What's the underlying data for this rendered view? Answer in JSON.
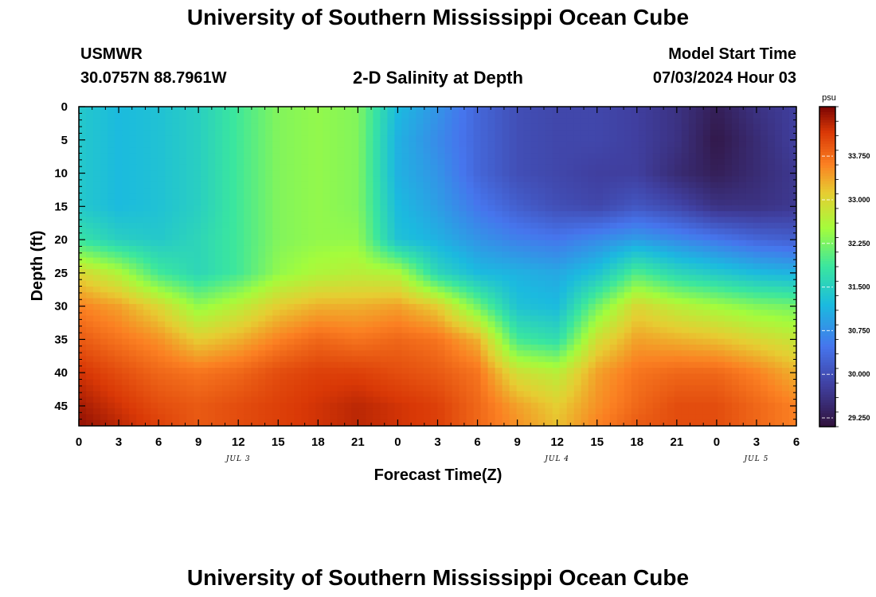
{
  "page": {
    "title_top": "University of Southern Mississippi Ocean Cube",
    "title_bottom": "University of Southern Mississippi Ocean Cube",
    "station_id": "USMWR",
    "station_coords": "30.0757N  88.7961W",
    "plot_title": "2-D Salinity at Depth",
    "model_start_label": "Model Start Time",
    "model_start_value": "07/03/2024 Hour 03"
  },
  "chart_data": {
    "type": "heatmap",
    "title": "2-D Salinity at Depth",
    "xlabel": "Forecast Time(Z)",
    "ylabel": "Depth (ft)",
    "x_range_hours": [
      0,
      54
    ],
    "x_tick_hours": [
      0,
      3,
      6,
      9,
      12,
      15,
      18,
      21,
      24,
      27,
      30,
      33,
      36,
      39,
      42,
      45,
      48,
      51,
      54
    ],
    "x_tick_labels": [
      "0",
      "3",
      "6",
      "9",
      "12",
      "15",
      "18",
      "21",
      "0",
      "3",
      "6",
      "9",
      "12",
      "15",
      "18",
      "21",
      "0",
      "3",
      "6"
    ],
    "date_labels": [
      {
        "text": "JUL 3",
        "hour": 12
      },
      {
        "text": "JUL 4",
        "hour": 36
      },
      {
        "text": "JUL 5",
        "hour": 51
      }
    ],
    "y_range_ft": [
      0,
      48
    ],
    "y_ticks": [
      0,
      5,
      10,
      15,
      20,
      25,
      30,
      35,
      40,
      45
    ],
    "y_tick_labels": [
      "0",
      "5",
      "10",
      "15",
      "20",
      "25",
      "30",
      "35",
      "40",
      "45"
    ],
    "colorbar": {
      "unit": "psu",
      "min": 29.1,
      "max": 34.6,
      "ticks": [
        29.25,
        30.0,
        30.75,
        31.5,
        32.25,
        33.0,
        33.75
      ],
      "tick_labels": [
        "29.250",
        "30.000",
        "30.750",
        "31.500",
        "32.250",
        "33.000",
        "33.750"
      ]
    },
    "grid_hours": [
      0,
      3,
      6,
      9,
      12,
      15,
      18,
      21,
      24,
      27,
      30,
      33,
      36,
      39,
      42,
      45,
      48,
      51,
      54
    ],
    "grid_depths_ft": [
      0,
      5,
      10,
      15,
      20,
      25,
      30,
      35,
      40,
      45,
      48
    ],
    "salinity_psu": [
      [
        31.4,
        31.2,
        31.3,
        31.5,
        31.9,
        32.3,
        32.4,
        32.3,
        31.2,
        30.8,
        30.3,
        30.0,
        29.9,
        29.9,
        29.8,
        29.6,
        29.3,
        29.6,
        29.8
      ],
      [
        31.4,
        31.2,
        31.3,
        31.5,
        31.9,
        32.3,
        32.4,
        32.3,
        31.1,
        30.7,
        30.3,
        30.0,
        29.9,
        29.9,
        29.8,
        29.6,
        29.2,
        29.5,
        29.8
      ],
      [
        31.4,
        31.2,
        31.3,
        31.5,
        31.9,
        32.3,
        32.4,
        32.3,
        31.1,
        30.8,
        30.3,
        30.0,
        29.9,
        29.8,
        29.8,
        29.5,
        29.3,
        29.5,
        29.7
      ],
      [
        31.4,
        31.2,
        31.3,
        31.5,
        31.9,
        32.3,
        32.4,
        32.3,
        31.2,
        30.9,
        30.5,
        30.2,
        30.0,
        29.9,
        30.1,
        29.9,
        29.6,
        29.6,
        29.7
      ],
      [
        31.8,
        31.5,
        31.4,
        31.6,
        31.9,
        32.3,
        32.4,
        32.4,
        31.3,
        31.1,
        30.8,
        30.6,
        30.5,
        30.7,
        30.9,
        30.7,
        30.5,
        30.3,
        30.2
      ],
      [
        33.0,
        32.6,
        31.9,
        31.6,
        31.9,
        32.4,
        32.6,
        32.7,
        32.6,
        31.6,
        31.2,
        31.1,
        31.0,
        31.3,
        32.0,
        31.6,
        31.4,
        31.2,
        31.1
      ],
      [
        33.6,
        33.4,
        33.0,
        32.4,
        32.7,
        33.1,
        33.3,
        33.3,
        33.4,
        33.1,
        32.2,
        31.3,
        31.2,
        32.2,
        33.0,
        32.7,
        32.5,
        32.3,
        32.2
      ],
      [
        33.9,
        33.7,
        33.5,
        33.1,
        33.3,
        33.6,
        33.8,
        33.7,
        33.8,
        33.7,
        33.3,
        31.9,
        31.7,
        32.9,
        33.4,
        33.3,
        33.2,
        33.0,
        32.8
      ],
      [
        34.2,
        34.0,
        33.8,
        33.7,
        33.8,
        34.0,
        34.1,
        34.1,
        34.0,
        33.9,
        33.7,
        32.9,
        32.7,
        33.4,
        33.7,
        33.8,
        33.8,
        33.6,
        33.3
      ],
      [
        34.4,
        34.2,
        34.0,
        33.9,
        34.0,
        34.1,
        34.2,
        34.3,
        34.2,
        34.1,
        33.8,
        33.4,
        33.1,
        33.5,
        33.8,
        34.0,
        34.0,
        33.8,
        33.6
      ],
      [
        34.5,
        34.3,
        34.1,
        33.9,
        34.0,
        34.1,
        34.2,
        34.3,
        34.2,
        34.1,
        33.8,
        33.5,
        33.2,
        33.6,
        33.9,
        34.0,
        34.0,
        33.8,
        33.6
      ]
    ]
  }
}
